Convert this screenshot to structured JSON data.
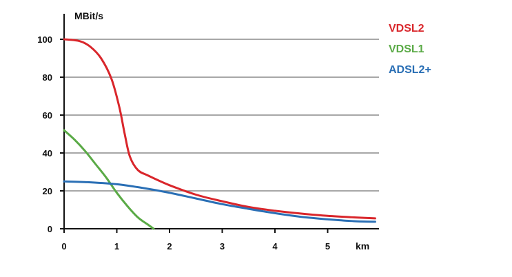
{
  "chart_data": {
    "type": "line",
    "ylabel": "MBit/s",
    "xlabel": "km",
    "xlim": [
      0,
      5.9
    ],
    "ylim": [
      0,
      110
    ],
    "x_ticks": [
      "0",
      "1",
      "2",
      "3",
      "4",
      "5"
    ],
    "y_ticks": [
      "0",
      "20",
      "40",
      "60",
      "80",
      "100"
    ],
    "grid": "horizontal",
    "legend_position": "top-right",
    "series": [
      {
        "name": "VDSL2",
        "color": "#d9262b",
        "points": [
          [
            0,
            100
          ],
          [
            0.3,
            99
          ],
          [
            0.5,
            96
          ],
          [
            0.7,
            90
          ],
          [
            0.9,
            79
          ],
          [
            1.05,
            64
          ],
          [
            1.15,
            50
          ],
          [
            1.25,
            38
          ],
          [
            1.4,
            31
          ],
          [
            1.6,
            28
          ],
          [
            2,
            23
          ],
          [
            2.5,
            18
          ],
          [
            3,
            14.5
          ],
          [
            3.5,
            11.5
          ],
          [
            4,
            9.5
          ],
          [
            4.5,
            8
          ],
          [
            5,
            6.8
          ],
          [
            5.5,
            6
          ],
          [
            5.9,
            5.5
          ]
        ]
      },
      {
        "name": "VDSL1",
        "color": "#5aaa46",
        "points": [
          [
            0,
            52
          ],
          [
            0.2,
            47
          ],
          [
            0.4,
            41
          ],
          [
            0.6,
            34
          ],
          [
            0.8,
            27
          ],
          [
            1,
            19
          ],
          [
            1.2,
            12
          ],
          [
            1.4,
            6
          ],
          [
            1.6,
            2
          ],
          [
            1.7,
            0
          ]
        ]
      },
      {
        "name": "ADSL2+",
        "color": "#2a6fb5",
        "points": [
          [
            0,
            25
          ],
          [
            0.5,
            24.5
          ],
          [
            1,
            23.5
          ],
          [
            1.5,
            21.5
          ],
          [
            2,
            19
          ],
          [
            2.5,
            16
          ],
          [
            3,
            13
          ],
          [
            3.5,
            10.5
          ],
          [
            4,
            8.2
          ],
          [
            4.5,
            6.3
          ],
          [
            5,
            5
          ],
          [
            5.5,
            4
          ],
          [
            5.9,
            3.7
          ]
        ]
      }
    ]
  }
}
